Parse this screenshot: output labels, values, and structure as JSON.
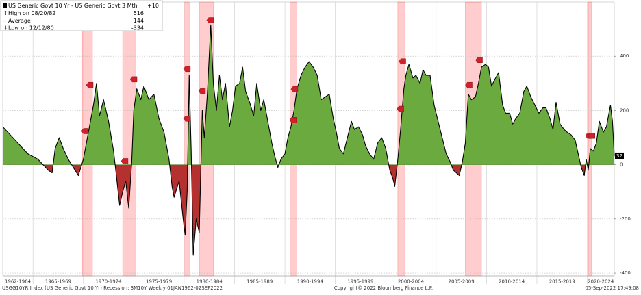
{
  "chart_data": {
    "type": "area",
    "legend": {
      "series_name": "US Generic Govt 10 Yr - US Generic Govt 3 Mth",
      "change": "+10",
      "rows": [
        {
          "label": "High on 08/20/82",
          "value": 516
        },
        {
          "label": "Average",
          "value": 144
        },
        {
          "label": "Low on 12/12/80",
          "value": -334
        }
      ]
    },
    "footer_left": "USGG10YR Index (US Generic Govt 10 Yr) Recession: 3M10Y  Weekly 01JAN1962-02SEP2022",
    "footer_center": "Copyright© 2022 Bloomberg Finance L.P.",
    "footer_right": "05-Sep-2022 17:49:08",
    "xlim": [
      1962,
      2022.68
    ],
    "ylim": [
      -410,
      600
    ],
    "yticks": [
      400,
      200,
      0,
      -200,
      -400
    ],
    "grid": true,
    "positive_color": "#6aaa3f",
    "negative_color": "#b5312f",
    "recession_color": "#ff4d4d",
    "periods": [
      {
        "from": 1962,
        "to": 1965,
        "label": "1962-1964"
      },
      {
        "from": 1965,
        "to": 1970,
        "label": "1965-1969"
      },
      {
        "from": 1970,
        "to": 1975,
        "label": "1970-1974"
      },
      {
        "from": 1975,
        "to": 1980,
        "label": "1975-1979"
      },
      {
        "from": 1980,
        "to": 1985,
        "label": "1980-1984"
      },
      {
        "from": 1985,
        "to": 1990,
        "label": "1985-1989"
      },
      {
        "from": 1990,
        "to": 1995,
        "label": "1990-1994"
      },
      {
        "from": 1995,
        "to": 2000,
        "label": "1995-1999"
      },
      {
        "from": 2000,
        "to": 2005,
        "label": "2000-2004"
      },
      {
        "from": 2005,
        "to": 2010,
        "label": "2005-2009"
      },
      {
        "from": 2010,
        "to": 2015,
        "label": "2010-2014"
      },
      {
        "from": 2015,
        "to": 2020,
        "label": "2015-2019"
      },
      {
        "from": 2020,
        "to": 2025,
        "label": "2020-2024"
      }
    ],
    "recessions": [
      [
        1969.9,
        1970.9
      ],
      [
        1973.9,
        1975.2
      ],
      [
        1980.0,
        1980.5
      ],
      [
        1981.5,
        1982.9
      ],
      [
        1990.5,
        1991.2
      ],
      [
        2001.2,
        2001.9
      ],
      [
        2007.9,
        2009.5
      ],
      [
        2020.1,
        2020.4
      ]
    ],
    "signals": {
      "x": [
        1970.15,
        1970.63,
        1974.09,
        1974.98,
        1980.27,
        1980.27,
        1981.77,
        1982.58,
        1990.94,
        1990.8,
        2001.45,
        2001.65,
        2008.24,
        2009.26,
        2020.15,
        2020.42
      ],
      "values": [
        124,
        294,
        13,
        315,
        353,
        170,
        272,
        533,
        279,
        165,
        206,
        381,
        294,
        386,
        107,
        107
      ]
    },
    "x": [
      1962.0,
      1962.5,
      1963.0,
      1963.5,
      1964.0,
      1964.5,
      1965.0,
      1965.5,
      1966.0,
      1966.5,
      1966.9,
      1967.2,
      1967.6,
      1968.0,
      1968.5,
      1969.0,
      1969.5,
      1970.0,
      1970.5,
      1971.0,
      1971.3,
      1971.6,
      1972.0,
      1972.5,
      1973.0,
      1973.3,
      1973.6,
      1973.9,
      1974.2,
      1974.5,
      1974.8,
      1975.0,
      1975.3,
      1975.7,
      1976.0,
      1976.5,
      1977.0,
      1977.5,
      1978.0,
      1978.5,
      1978.8,
      1979.0,
      1979.5,
      1979.9,
      1980.1,
      1980.3,
      1980.5,
      1980.7,
      1980.9,
      1981.2,
      1981.5,
      1981.8,
      1982.0,
      1982.3,
      1982.64,
      1982.9,
      1983.2,
      1983.5,
      1983.8,
      1984.1,
      1984.5,
      1984.8,
      1985.1,
      1985.5,
      1985.8,
      1986.1,
      1986.5,
      1986.9,
      1987.2,
      1987.6,
      1987.9,
      1988.3,
      1988.7,
      1989.0,
      1989.3,
      1989.6,
      1990.0,
      1990.3,
      1990.6,
      1990.9,
      1991.2,
      1991.6,
      1992.0,
      1992.4,
      1992.8,
      1993.2,
      1993.6,
      1994.0,
      1994.4,
      1994.8,
      1995.1,
      1995.4,
      1995.8,
      1996.2,
      1996.6,
      1996.9,
      1997.3,
      1997.7,
      1998.0,
      1998.4,
      1998.8,
      1999.2,
      1999.6,
      2000.0,
      2000.4,
      2000.7,
      2000.9,
      2001.2,
      2001.5,
      2001.8,
      2002.0,
      2002.3,
      2002.7,
      2003.0,
      2003.4,
      2003.7,
      2004.0,
      2004.4,
      2004.8,
      2005.2,
      2005.6,
      2006.0,
      2006.4,
      2006.7,
      2007.0,
      2007.3,
      2007.6,
      2007.9,
      2008.2,
      2008.5,
      2008.9,
      2009.2,
      2009.5,
      2009.9,
      2010.2,
      2010.5,
      2010.9,
      2011.2,
      2011.6,
      2011.9,
      2012.3,
      2012.6,
      2012.9,
      2013.3,
      2013.7,
      2014.0,
      2014.4,
      2014.8,
      2015.2,
      2015.6,
      2015.9,
      2016.3,
      2016.6,
      2016.9,
      2017.3,
      2017.7,
      2018.0,
      2018.4,
      2018.8,
      2019.1,
      2019.4,
      2019.7,
      2019.9,
      2020.1,
      2020.3,
      2020.6,
      2020.9,
      2021.2,
      2021.6,
      2021.9,
      2022.3,
      2022.5,
      2022.68
    ],
    "series": [
      {
        "name": "US Generic Govt 10 Yr - US Generic Govt 3 Mth",
        "color": "#000000",
        "values": [
          140,
          120,
          100,
          80,
          60,
          40,
          30,
          20,
          0,
          -20,
          -30,
          60,
          100,
          60,
          20,
          -10,
          -40,
          20,
          120,
          220,
          300,
          180,
          240,
          160,
          50,
          -50,
          -150,
          -100,
          -60,
          -160,
          10,
          200,
          280,
          240,
          290,
          240,
          260,
          170,
          120,
          20,
          -80,
          -120,
          -60,
          -200,
          -260,
          -100,
          330,
          50,
          -334,
          -200,
          -250,
          200,
          100,
          260,
          516,
          300,
          200,
          330,
          240,
          300,
          140,
          200,
          290,
          300,
          360,
          270,
          230,
          180,
          300,
          200,
          240,
          160,
          80,
          30,
          -10,
          20,
          40,
          100,
          140,
          200,
          280,
          330,
          360,
          380,
          360,
          330,
          240,
          250,
          260,
          170,
          120,
          60,
          40,
          100,
          160,
          130,
          140,
          110,
          70,
          40,
          20,
          80,
          100,
          60,
          -20,
          -50,
          -80,
          20,
          140,
          280,
          330,
          370,
          320,
          330,
          300,
          350,
          330,
          330,
          220,
          160,
          100,
          40,
          10,
          -20,
          -30,
          -40,
          10,
          80,
          260,
          240,
          250,
          300,
          360,
          370,
          360,
          290,
          320,
          340,
          220,
          190,
          190,
          150,
          170,
          190,
          270,
          290,
          250,
          220,
          190,
          210,
          210,
          170,
          130,
          230,
          150,
          130,
          120,
          110,
          90,
          40,
          -10,
          -40,
          20,
          -20,
          60,
          50,
          80,
          160,
          120,
          140,
          220,
          160,
          32
        ]
      }
    ]
  }
}
